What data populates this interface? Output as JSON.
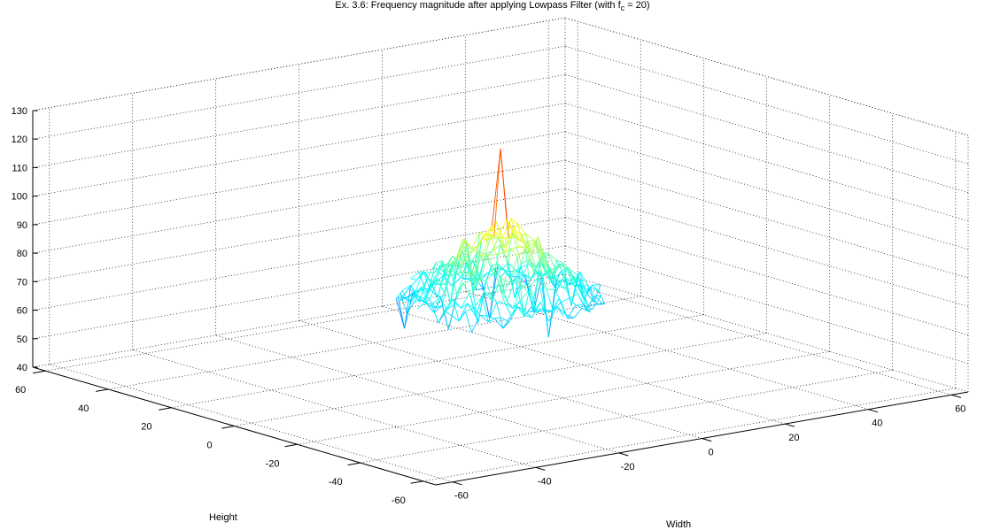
{
  "chart_data": {
    "type": "surface-mesh-3d",
    "title_main": "Ex. 3.6: Frequency magnitude after applying Lowpass Filter (with f",
    "title_sub": "c",
    "title_tail": " = 20)",
    "xlabel": "Width",
    "ylabel": "Height",
    "zlabel": "",
    "xlim": [
      -64,
      64
    ],
    "ylim": [
      -64,
      64
    ],
    "zlim": [
      40,
      130
    ],
    "x_ticks": [
      "-60",
      "-40",
      "-20",
      "0",
      "20",
      "40",
      "60"
    ],
    "y_ticks": [
      "-60",
      "-40",
      "-20",
      "0",
      "20",
      "40",
      "60"
    ],
    "z_ticks": [
      "40",
      "50",
      "60",
      "70",
      "80",
      "90",
      "100",
      "110",
      "120",
      "130"
    ],
    "grid": true,
    "colormap": "jet",
    "filter_cutoff_radius": 20,
    "peak": {
      "x": 0,
      "y": 0,
      "z": 121
    },
    "base_level_near_cutoff": 67,
    "center_plateau_level": 94,
    "min_visible": 49
  }
}
